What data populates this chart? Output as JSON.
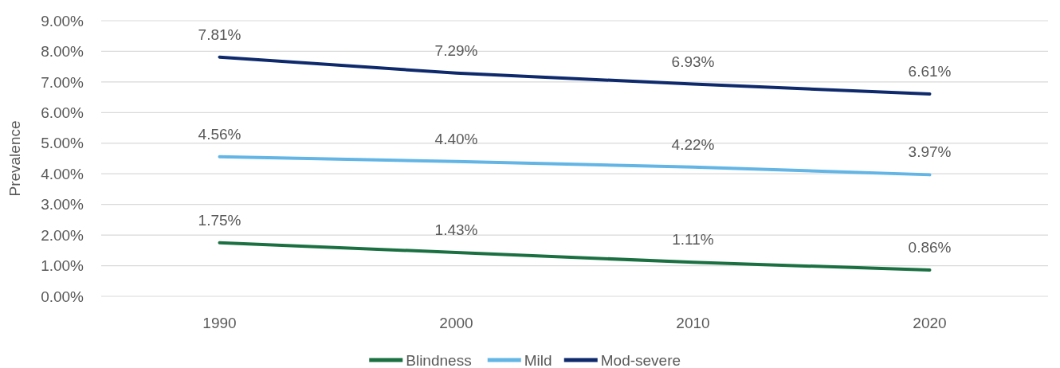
{
  "chart_data": {
    "type": "line",
    "ylabel": "Prevalence",
    "categories": [
      "1990",
      "2000",
      "2010",
      "2020"
    ],
    "series": [
      {
        "name": "Blindness",
        "color": "#1b7042",
        "values": [
          1.75,
          1.43,
          1.11,
          0.86
        ],
        "value_labels": [
          "1.75%",
          "1.43%",
          "1.11%",
          "0.86%"
        ]
      },
      {
        "name": "Mild",
        "color": "#62b5e5",
        "values": [
          4.56,
          4.4,
          4.22,
          3.97
        ],
        "value_labels": [
          "4.56%",
          "4.40%",
          "4.22%",
          "3.97%"
        ]
      },
      {
        "name": "Mod-severe",
        "color": "#0e2a6c",
        "values": [
          7.81,
          7.29,
          6.93,
          6.61
        ],
        "value_labels": [
          "7.81%",
          "7.29%",
          "6.93%",
          "6.61%"
        ]
      }
    ],
    "ylim": [
      0,
      9
    ],
    "yticks": [
      {
        "value": 0,
        "label": "0.00%"
      },
      {
        "value": 1,
        "label": "1.00%"
      },
      {
        "value": 2,
        "label": "2.00%"
      },
      {
        "value": 3,
        "label": "3.00%"
      },
      {
        "value": 4,
        "label": "4.00%"
      },
      {
        "value": 5,
        "label": "5.00%"
      },
      {
        "value": 6,
        "label": "6.00%"
      },
      {
        "value": 7,
        "label": "7.00%"
      },
      {
        "value": 8,
        "label": "8.00%"
      },
      {
        "value": 9,
        "label": "9.00%"
      }
    ],
    "grid": "y",
    "legend": "bottom",
    "marker": "none",
    "line_style": "solid"
  }
}
